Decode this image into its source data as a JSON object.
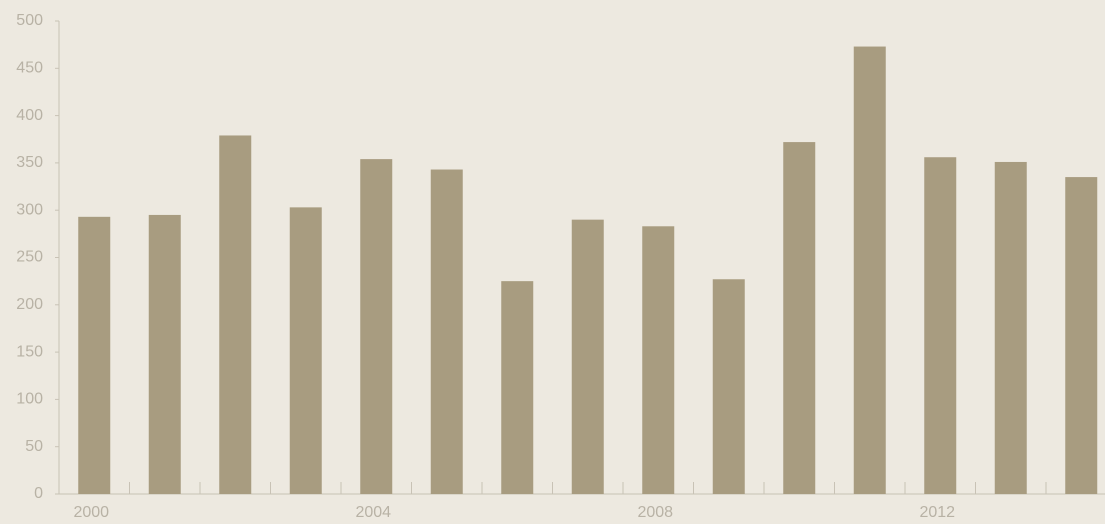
{
  "chart_data": {
    "type": "bar",
    "categories": [
      "2000",
      null,
      null,
      null,
      "2004",
      null,
      null,
      null,
      "2008",
      null,
      null,
      null,
      "2012",
      null,
      null
    ],
    "values": [
      293,
      295,
      379,
      303,
      354,
      343,
      225,
      290,
      283,
      227,
      372,
      473,
      356,
      351,
      335
    ],
    "color": "#a89c80",
    "ylim": [
      0,
      500
    ],
    "yticks": [
      0,
      50,
      100,
      150,
      200,
      250,
      300,
      350,
      400,
      450,
      500
    ],
    "grid": false
  }
}
